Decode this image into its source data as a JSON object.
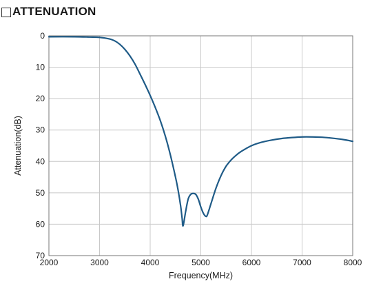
{
  "header": {
    "title": "ATTENUATION"
  },
  "chart_data": {
    "type": "line",
    "title": "ATTENUATION",
    "xlabel": "Frequency(MHz)",
    "ylabel": "Attenuation(dB)",
    "xlim": [
      2000,
      8000
    ],
    "ylim": [
      0,
      70
    ],
    "y_inverted": true,
    "grid": true,
    "legend": "none",
    "x_ticks": [
      2000,
      3000,
      4000,
      5000,
      6000,
      7000,
      8000
    ],
    "y_ticks": [
      0,
      10,
      20,
      30,
      40,
      50,
      60,
      70
    ],
    "line_color": "#1f5b87",
    "grid_color": "#c8c8c8",
    "series": [
      {
        "x": [
          2000,
          2500,
          2800,
          3000,
          3200,
          3300,
          3400,
          3500,
          3600,
          3700,
          3800,
          3900,
          4000,
          4100,
          4200,
          4300,
          4400,
          4500,
          4550,
          4600,
          4630,
          4650,
          4700,
          4750,
          4800,
          4850,
          4900,
          4950,
          5000,
          5050,
          5100,
          5130,
          5200,
          5300,
          5400,
          5500,
          5600,
          5700,
          5800,
          6000,
          6200,
          6400,
          6600,
          6800,
          7000,
          7200,
          7400,
          7600,
          7800,
          8000
        ],
        "y": [
          0.3,
          0.3,
          0.4,
          0.5,
          1.0,
          1.6,
          2.7,
          4.3,
          6.4,
          9.0,
          12.2,
          15.5,
          19.0,
          22.8,
          27.0,
          32.0,
          38.0,
          45.0,
          49.0,
          54.0,
          58.0,
          60.5,
          56.0,
          52.0,
          50.5,
          50.2,
          50.5,
          52.0,
          54.5,
          56.5,
          57.5,
          57.0,
          53.5,
          48.5,
          44.5,
          41.5,
          39.5,
          38.0,
          36.8,
          35.0,
          33.9,
          33.2,
          32.7,
          32.4,
          32.2,
          32.2,
          32.3,
          32.6,
          33.0,
          33.6
        ]
      }
    ]
  }
}
